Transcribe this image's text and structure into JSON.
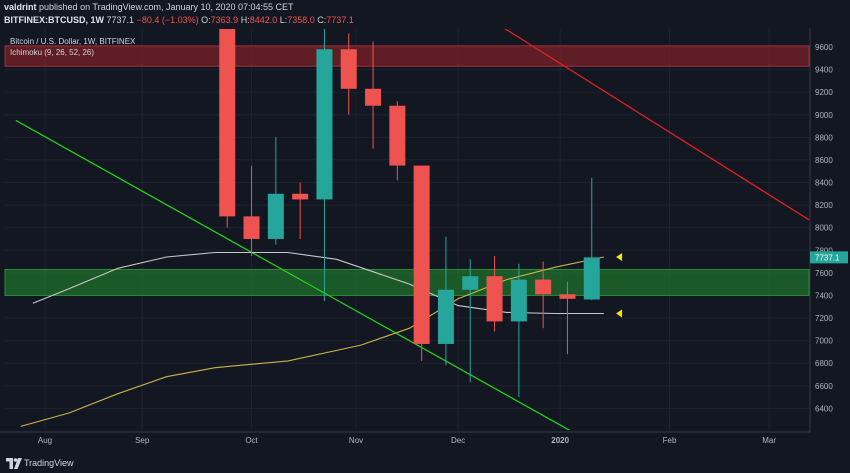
{
  "header": {
    "author": "valdrint",
    "published_text": "published on TradingView.com, January 10, 2020 07:04:55 CET",
    "symbol": "BITFINEX:BTCUSD, 1W",
    "price": "7737.1",
    "change": "−80.4 (−1.03%)",
    "o_label": "O:",
    "o_value": "7363.9",
    "h_label": "H:",
    "h_value": "8442.0",
    "l_label": "L:",
    "l_value": "7358.0",
    "c_label": "C:",
    "c_value": "7737.1"
  },
  "legend": {
    "instrument": "Bitcoin / U.S. Dollar, 1W, BITFINEX",
    "indicator": "Ichimoku (9, 26, 52, 26)"
  },
  "footer": {
    "brand": "TradingView"
  },
  "colors": {
    "background": "#131722",
    "bull": "#26a69a",
    "bear": "#ef5350",
    "ma_white": "#c8c8c8",
    "ma_yellow": "#c9b548",
    "green_line": "#22d019",
    "red_line": "#e02020",
    "green_zone": "#1e6b2a",
    "red_zone": "#7a2228",
    "marker": "#f5e600"
  },
  "chart_data": {
    "type": "candlestick",
    "ylim": [
      6200,
      9800
    ],
    "y_ticks": [
      6400,
      6600,
      6800,
      7000,
      7200,
      7400,
      7600,
      7800,
      8000,
      8200,
      8400,
      8600,
      8800,
      9000,
      9200,
      9400,
      9600
    ],
    "x_ticks": [
      {
        "label": "Aug",
        "week": 1
      },
      {
        "label": "Sep",
        "week": 5
      },
      {
        "label": "Oct",
        "week": 9.5
      },
      {
        "label": "Nov",
        "week": 13.8
      },
      {
        "label": "Dec",
        "week": 18
      },
      {
        "label": "2020",
        "week": 22.2
      },
      {
        "label": "Feb",
        "week": 26.7
      },
      {
        "label": "Mar",
        "week": 30.8
      }
    ],
    "last_price_label": "7737.1",
    "candles": [
      {
        "week": 8.5,
        "open": 9900,
        "high": 9950,
        "low": 8000,
        "close": 8100
      },
      {
        "week": 9.5,
        "open": 8100,
        "high": 8550,
        "low": 7750,
        "close": 7900
      },
      {
        "week": 10.5,
        "open": 7900,
        "high": 8800,
        "low": 7850,
        "close": 8300
      },
      {
        "week": 11.5,
        "open": 8300,
        "high": 8400,
        "low": 7900,
        "close": 8250
      },
      {
        "week": 12.5,
        "open": 8250,
        "high": 10300,
        "low": 7350,
        "close": 9580
      },
      {
        "week": 13.5,
        "open": 9580,
        "high": 9720,
        "low": 9000,
        "close": 9230
      },
      {
        "week": 14.5,
        "open": 9230,
        "high": 9650,
        "low": 8700,
        "close": 9080
      },
      {
        "week": 15.5,
        "open": 9080,
        "high": 9120,
        "low": 8420,
        "close": 8550
      },
      {
        "week": 16.5,
        "open": 8550,
        "high": 8550,
        "low": 6820,
        "close": 6970
      },
      {
        "week": 17.5,
        "open": 6970,
        "high": 7920,
        "low": 6780,
        "close": 7450
      },
      {
        "week": 18.5,
        "open": 7450,
        "high": 7720,
        "low": 6630,
        "close": 7570
      },
      {
        "week": 19.5,
        "open": 7570,
        "high": 7750,
        "low": 7080,
        "close": 7170
      },
      {
        "week": 20.5,
        "open": 7170,
        "high": 7680,
        "low": 6500,
        "close": 7540
      },
      {
        "week": 21.5,
        "open": 7540,
        "high": 7700,
        "low": 7110,
        "close": 7410
      },
      {
        "week": 22.5,
        "open": 7410,
        "high": 7520,
        "low": 6880,
        "close": 7370
      },
      {
        "week": 23.5,
        "open": 7364,
        "high": 8442,
        "low": 7358,
        "close": 7737
      }
    ],
    "ma_white": [
      {
        "week": 0.5,
        "value": 7330
      },
      {
        "week": 2,
        "value": 7460
      },
      {
        "week": 4,
        "value": 7640
      },
      {
        "week": 6,
        "value": 7740
      },
      {
        "week": 8,
        "value": 7780
      },
      {
        "week": 11,
        "value": 7780
      },
      {
        "week": 13,
        "value": 7720
      },
      {
        "week": 16,
        "value": 7500
      },
      {
        "week": 18,
        "value": 7310
      },
      {
        "week": 20,
        "value": 7250
      },
      {
        "week": 22,
        "value": 7240
      },
      {
        "week": 24,
        "value": 7240
      }
    ],
    "ma_yellow": [
      {
        "week": 0,
        "value": 6240
      },
      {
        "week": 2,
        "value": 6360
      },
      {
        "week": 4,
        "value": 6530
      },
      {
        "week": 6,
        "value": 6680
      },
      {
        "week": 8,
        "value": 6760
      },
      {
        "week": 11,
        "value": 6820
      },
      {
        "week": 14,
        "value": 6960
      },
      {
        "week": 16,
        "value": 7110
      },
      {
        "week": 18,
        "value": 7370
      },
      {
        "week": 20,
        "value": 7540
      },
      {
        "week": 22,
        "value": 7650
      },
      {
        "week": 24,
        "value": 7740
      }
    ],
    "green_trendline": [
      {
        "week": -0.2,
        "value": 8950
      },
      {
        "week": 22.8,
        "value": 6180
      }
    ],
    "red_trendline": [
      {
        "week": 17.8,
        "value": 10050
      },
      {
        "week": 34.8,
        "value": 7750
      }
    ],
    "green_zone": [
      7400,
      7630
    ],
    "red_zone": [
      9430,
      9610
    ],
    "markers": [
      {
        "week": 24.5,
        "value": 7740
      },
      {
        "week": 24.5,
        "value": 7240
      }
    ]
  }
}
